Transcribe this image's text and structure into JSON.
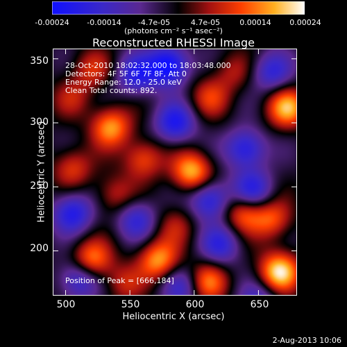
{
  "colorbar": {
    "ticks": [
      "-0.00024",
      "-0.00014",
      "-4.7e-05",
      "4.7e-05",
      "0.00014",
      "0.00024"
    ],
    "units": "(photons cm⁻² s⁻¹ asec⁻²)",
    "min": -0.00024,
    "max": 0.00024
  },
  "annotations": {
    "time": "28-Oct-2010 18:02:32.000 to 18:03:48.000",
    "detectors": "Detectors: 4F 5F 6F 7F 8F, Att 0",
    "energy": "Energy Range: 12.0 - 25.0 keV",
    "clean": "Clean    Total counts: 892.",
    "peak": "Position of Peak = [666,184]"
  },
  "stamp": "2-Aug-2013 10:06",
  "chart_data": {
    "type": "heatmap",
    "title": "Reconstructed RHESSI Image",
    "xlabel": "Heliocentric X (arcsec)",
    "ylabel": "Heliocentric Y (arcsec)",
    "xlim": [
      490,
      680
    ],
    "ylim": [
      165,
      358
    ],
    "xticks": [
      500,
      550,
      600,
      650
    ],
    "yticks": [
      200,
      250,
      300,
      350
    ],
    "colormap": "blue-purple-red-yellow-white",
    "peak": [
      666,
      184
    ],
    "sources": [
      {
        "x": 666,
        "y": 184,
        "value": 0.00024
      },
      {
        "x": 672,
        "y": 312,
        "value": 0.0002
      },
      {
        "x": 598,
        "y": 262,
        "value": 0.00021
      },
      {
        "x": 535,
        "y": 297,
        "value": 0.00019
      },
      {
        "x": 520,
        "y": 193,
        "value": 0.00018
      },
      {
        "x": 572,
        "y": 193,
        "value": 0.00019
      },
      {
        "x": 560,
        "y": 272,
        "value": 0.00014
      },
      {
        "x": 638,
        "y": 230,
        "value": 0.00015
      },
      {
        "x": 610,
        "y": 176,
        "value": 0.00016
      },
      {
        "x": 505,
        "y": 265,
        "value": 0.00012
      },
      {
        "x": 660,
        "y": 225,
        "value": 0.00014
      },
      {
        "x": 520,
        "y": 342,
        "value": 0.0001
      },
      {
        "x": 612,
        "y": 320,
        "value": 0.00011
      },
      {
        "x": 538,
        "y": 244,
        "value": 0.0001
      },
      {
        "x": 545,
        "y": 175,
        "value": 9e-05
      },
      {
        "x": 630,
        "y": 340,
        "value": 8e-05
      },
      {
        "x": 585,
        "y": 220,
        "value": 8e-05
      },
      {
        "x": 505,
        "y": 320,
        "value": 8e-05
      },
      {
        "x": 580,
        "y": 345,
        "value": -0.00024
      },
      {
        "x": 555,
        "y": 338,
        "value": -0.00016
      },
      {
        "x": 510,
        "y": 178,
        "value": -0.00016
      },
      {
        "x": 505,
        "y": 230,
        "value": -0.00018
      },
      {
        "x": 640,
        "y": 280,
        "value": -0.00018
      },
      {
        "x": 612,
        "y": 240,
        "value": -0.00018
      },
      {
        "x": 645,
        "y": 248,
        "value": -0.00016
      },
      {
        "x": 585,
        "y": 300,
        "value": -0.00018
      },
      {
        "x": 555,
        "y": 225,
        "value": -0.00014
      },
      {
        "x": 620,
        "y": 205,
        "value": -0.00014
      },
      {
        "x": 650,
        "y": 160,
        "value": -0.00012
      },
      {
        "x": 590,
        "y": 172,
        "value": -0.00012
      },
      {
        "x": 660,
        "y": 340,
        "value": -0.00014
      }
    ]
  }
}
